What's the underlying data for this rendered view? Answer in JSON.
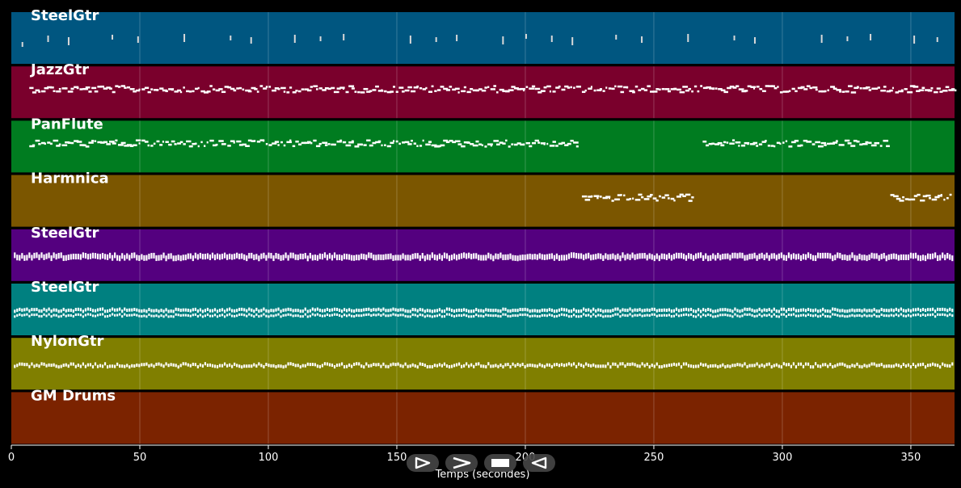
{
  "chart_data": {
    "type": "piano-roll",
    "xlabel": "Temps (secondes)",
    "xlim": [
      0,
      367
    ],
    "xticks": [
      0,
      50,
      100,
      150,
      200,
      250,
      300,
      350
    ],
    "tracks": [
      {
        "name": "SteelGtr",
        "color": "#005680",
        "pattern": "sparse",
        "segments": [
          [
            3,
            362
          ]
        ],
        "notes": [
          4,
          14,
          22,
          39,
          49,
          67,
          85,
          93,
          110,
          120,
          129,
          155,
          165,
          173,
          191,
          200,
          210,
          218,
          235,
          245,
          263,
          281,
          289,
          315,
          325,
          334,
          351,
          360
        ]
      },
      {
        "name": "JazzGtr",
        "color": "#7a002c",
        "pattern": "melody",
        "segments": [
          [
            7,
            220
          ],
          [
            222,
            367
          ]
        ]
      },
      {
        "name": "PanFlute",
        "color": "#007c20",
        "pattern": "melody",
        "segments": [
          [
            7,
            220
          ],
          [
            269,
            341
          ]
        ]
      },
      {
        "name": "Harmnica",
        "color": "#7b5600",
        "pattern": "melody",
        "segments": [
          [
            222,
            265
          ],
          [
            342,
            366
          ]
        ]
      },
      {
        "name": "SteelGtr",
        "color": "#54007f",
        "pattern": "dense",
        "segments": [
          [
            1,
            366
          ]
        ]
      },
      {
        "name": "SteelGtr",
        "color": "#008080",
        "pattern": "double",
        "segments": [
          [
            1,
            366
          ]
        ]
      },
      {
        "name": "NylonGtr",
        "color": "#807f00",
        "pattern": "dense-thin",
        "segments": [
          [
            1,
            366
          ]
        ]
      },
      {
        "name": "GM Drums",
        "color": "#7b2300",
        "pattern": "none",
        "segments": []
      }
    ]
  },
  "controls": [
    {
      "name": "play-forward",
      "icon": "play-icon"
    },
    {
      "name": "fast-forward",
      "icon": "forward-icon"
    },
    {
      "name": "stop",
      "icon": "stop-icon"
    },
    {
      "name": "rewind",
      "icon": "rewind-icon"
    }
  ]
}
